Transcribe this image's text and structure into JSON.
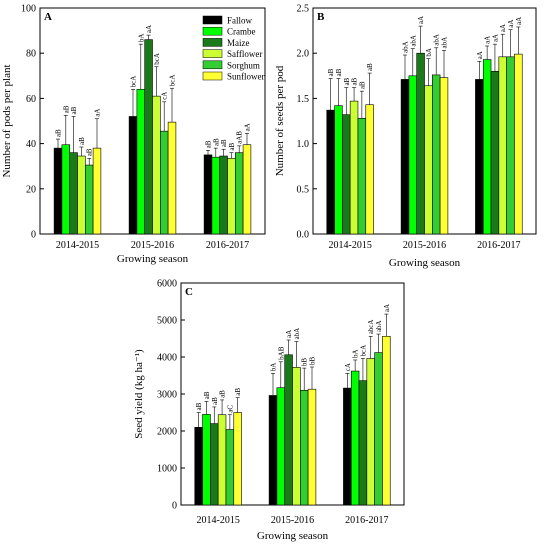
{
  "colors": {
    "Fallow": "#000000",
    "Crambe": "#00ff00",
    "Maize": "#1a7a1a",
    "Safflower": "#ccff33",
    "Sorghum": "#33cc33",
    "Sunflower": "#ffff33"
  },
  "chart_data": [
    {
      "panel": "A",
      "type": "bar",
      "categories": [
        "2014-2015",
        "2015-2016",
        "2016-2017"
      ],
      "xlabel": "Growing season",
      "ylabel": "Number of pods per plant",
      "ylim": [
        0,
        100
      ],
      "yticks": [
        0,
        20,
        40,
        60,
        80,
        100
      ],
      "legend": "top-right",
      "series": [
        {
          "name": "Fallow",
          "values": [
            38,
            52,
            35
          ],
          "errors": [
            4,
            12,
            2
          ],
          "labels": [
            "aB",
            "bcA",
            "aB"
          ]
        },
        {
          "name": "Crambe",
          "values": [
            39.5,
            64,
            34
          ],
          "errors": [
            13,
            20,
            4
          ],
          "labels": [
            "aB",
            "bA",
            "aB"
          ]
        },
        {
          "name": "Maize",
          "values": [
            36,
            86,
            34.5
          ],
          "errors": [
            16,
            2,
            3
          ],
          "labels": [
            "aB",
            "aA",
            "aB"
          ]
        },
        {
          "name": "Safflower",
          "values": [
            34.5,
            61,
            33.5
          ],
          "errors": [
            4,
            13,
            2.5
          ],
          "labels": [
            "aB",
            "bcA",
            "aB"
          ]
        },
        {
          "name": "Sorghum",
          "values": [
            30.5,
            45.5,
            36
          ],
          "errors": [
            3,
            13,
            3
          ],
          "labels": [
            "aB",
            "cA",
            "aAB"
          ]
        },
        {
          "name": "Sunflower",
          "values": [
            38,
            49.5,
            39.5
          ],
          "errors": [
            13,
            15,
            5
          ],
          "labels": [
            "aA",
            "bcA",
            "aA"
          ]
        }
      ]
    },
    {
      "panel": "B",
      "type": "bar",
      "categories": [
        "2014-2015",
        "2015-2016",
        "2016-2017"
      ],
      "xlabel": "Growing season",
      "ylabel": "Number of seeds per pod",
      "ylim": [
        0,
        2.5
      ],
      "yticks": [
        0.0,
        0.5,
        1.0,
        1.5,
        2.0,
        2.5
      ],
      "series": [
        {
          "name": "Fallow",
          "values": [
            1.37,
            1.71,
            1.71
          ],
          "errors": [
            0.35,
            0.27,
            0.2
          ],
          "labels": [
            "aB",
            "abA",
            "aA"
          ]
        },
        {
          "name": "Crambe",
          "values": [
            1.42,
            1.75,
            1.93
          ],
          "errors": [
            0.3,
            0.3,
            0.15
          ],
          "labels": [
            "aB",
            "abA",
            "aA"
          ]
        },
        {
          "name": "Maize",
          "values": [
            1.32,
            2.0,
            1.8
          ],
          "errors": [
            0.3,
            0.3,
            0.3
          ],
          "labels": [
            "aB",
            "aA",
            "aA"
          ]
        },
        {
          "name": "Safflower",
          "values": [
            1.47,
            1.64,
            1.96
          ],
          "errors": [
            0.15,
            0.3,
            0.25
          ],
          "labels": [
            "aB",
            "bA",
            "aA"
          ]
        },
        {
          "name": "Sorghum",
          "values": [
            1.28,
            1.76,
            1.96
          ],
          "errors": [
            0.3,
            0.3,
            0.3
          ],
          "labels": [
            "aB",
            "abA",
            "aA"
          ]
        },
        {
          "name": "Sunflower",
          "values": [
            1.43,
            1.73,
            1.99
          ],
          "errors": [
            0.35,
            0.3,
            0.3
          ],
          "labels": [
            "aB",
            "abA",
            "aA"
          ]
        }
      ]
    },
    {
      "panel": "C",
      "type": "bar",
      "categories": [
        "2014-2015",
        "2015-2016",
        "2016-2017"
      ],
      "xlabel": "Growing season",
      "ylabel": "Seed yield (kg ha⁻¹)",
      "ylim": [
        0,
        6000
      ],
      "yticks": [
        0,
        1000,
        2000,
        3000,
        4000,
        5000,
        6000
      ],
      "series": [
        {
          "name": "Fallow",
          "values": [
            2100,
            2960,
            3160
          ],
          "errors": [
            400,
            600,
            400
          ],
          "labels": [
            "aB",
            "bA",
            "cA"
          ]
        },
        {
          "name": "Crambe",
          "values": [
            2450,
            3170,
            3620
          ],
          "errors": [
            350,
            700,
            300
          ],
          "labels": [
            "aB",
            "bAB",
            "bA"
          ]
        },
        {
          "name": "Maize",
          "values": [
            2200,
            4060,
            3360
          ],
          "errors": [
            450,
            400,
            600
          ],
          "labels": [
            "aB",
            "aA",
            "bcA"
          ]
        },
        {
          "name": "Safflower",
          "values": [
            2440,
            3720,
            3960
          ],
          "errors": [
            400,
            700,
            600
          ],
          "labels": [
            "aB",
            "abA",
            "abcA"
          ]
        },
        {
          "name": "Sorghum",
          "values": [
            2040,
            3100,
            4120
          ],
          "errors": [
            400,
            600,
            500
          ],
          "labels": [
            "aC",
            "bB",
            "abA"
          ]
        },
        {
          "name": "Sunflower",
          "values": [
            2500,
            3130,
            4560
          ],
          "errors": [
            400,
            600,
            600
          ],
          "labels": [
            "aB",
            "bB",
            "aA"
          ]
        }
      ]
    }
  ]
}
